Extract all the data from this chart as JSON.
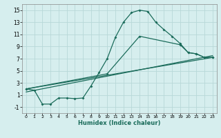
{
  "xlabel": "Humidex (Indice chaleur)",
  "xlim": [
    -0.5,
    23.5
  ],
  "ylim": [
    -2,
    16
  ],
  "xticks": [
    0,
    1,
    2,
    3,
    4,
    5,
    6,
    7,
    8,
    9,
    10,
    11,
    12,
    13,
    14,
    15,
    16,
    17,
    18,
    19,
    20,
    21,
    22,
    23
  ],
  "yticks": [
    -1,
    1,
    3,
    5,
    7,
    9,
    11,
    13,
    15
  ],
  "bg_color": "#d6eeee",
  "grid_color": "#b8d8d8",
  "line_color": "#1a6b5a",
  "line1_x": [
    0,
    1,
    2,
    3,
    4,
    5,
    6,
    7,
    8,
    9,
    10,
    11,
    12,
    13,
    14,
    15,
    16,
    17,
    18,
    19,
    20,
    21,
    22,
    23
  ],
  "line1_y": [
    2.0,
    1.8,
    -0.5,
    -0.5,
    0.5,
    0.5,
    0.4,
    0.5,
    2.5,
    4.7,
    7.0,
    10.5,
    13.0,
    14.6,
    15.0,
    14.8,
    13.0,
    11.8,
    10.7,
    9.5,
    8.0,
    7.8,
    7.2,
    7.2
  ],
  "line2_x": [
    0,
    23
  ],
  "line2_y": [
    2.0,
    7.2
  ],
  "line3_x": [
    0,
    23
  ],
  "line3_y": [
    1.5,
    7.5
  ],
  "line4_x": [
    0,
    10,
    14,
    19,
    20,
    21,
    22,
    23
  ],
  "line4_y": [
    2.0,
    4.5,
    10.7,
    9.3,
    8.0,
    7.8,
    7.2,
    7.2
  ]
}
